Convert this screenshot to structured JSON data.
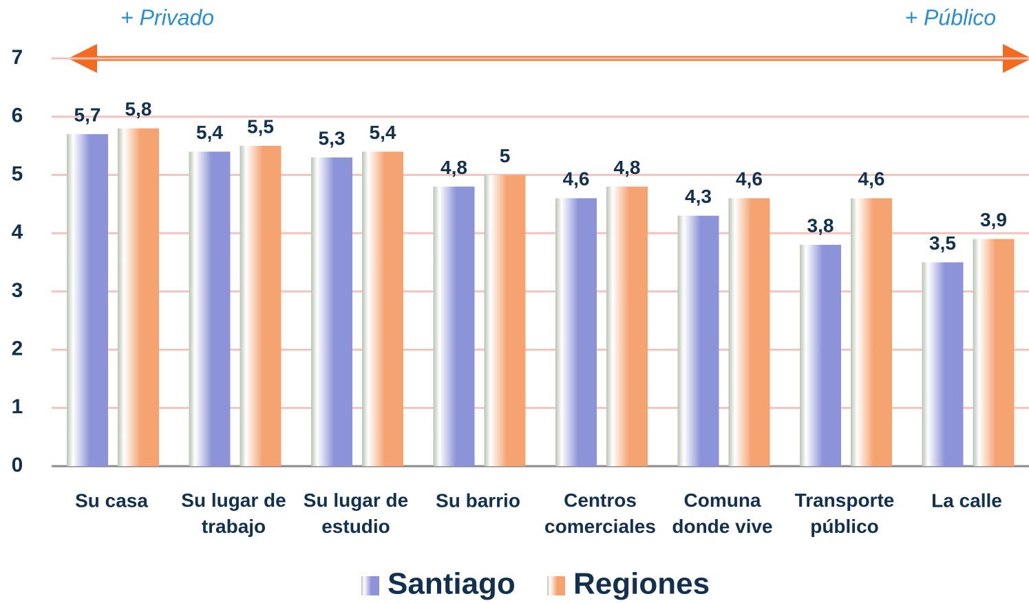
{
  "chart_data": {
    "type": "bar",
    "annotations": [
      "+ Privado",
      "+ Público"
    ],
    "categories": [
      "Su casa",
      "Su lugar de\ntrabajo",
      "Su lugar de\nestudio",
      "Su barrio",
      "Centros\ncomerciales",
      "Comuna\ndonde vive",
      "Transporte\npúblico",
      "La calle"
    ],
    "series": [
      {
        "name": "Santiago",
        "color": "#8d93d8",
        "values": [
          5.7,
          5.4,
          5.3,
          4.8,
          4.6,
          4.3,
          3.8,
          3.5
        ],
        "value_labels": [
          "5,7",
          "5,4",
          "5,3",
          "4,8",
          "4,6",
          "4,3",
          "3,8",
          "3,5"
        ]
      },
      {
        "name": "Regiones",
        "color": "#f5a370",
        "values": [
          5.8,
          5.5,
          5.4,
          5,
          4.8,
          4.6,
          4.6,
          3.9
        ],
        "value_labels": [
          "5,8",
          "5,5",
          "5,4",
          "5",
          "4,8",
          "4,6",
          "4,6",
          "3,9"
        ]
      }
    ],
    "ylim": [
      0,
      7
    ],
    "yticks": [
      0,
      1,
      2,
      3,
      4,
      5,
      6,
      7
    ],
    "grid": true,
    "legend": "bottom"
  }
}
